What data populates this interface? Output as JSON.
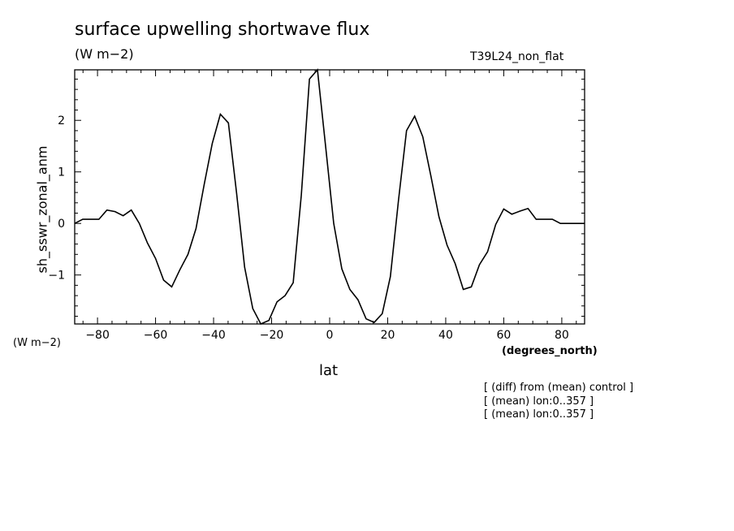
{
  "chart_data": {
    "type": "line",
    "title": "surface upwelling shortwave flux",
    "units": "(W m−2)",
    "run_label": "T39L24_non_flat",
    "ylabel": "sh_sswr_zonal_anm",
    "ylabel_units": "(W m−2)",
    "xlabel": "lat",
    "xlabel_units": "(degrees_north)",
    "notes": [
      "[ (diff) from (mean) control ]",
      "[ (mean) lon:0..357 ]",
      "[ (mean) lon:0..357 ]"
    ],
    "xlim": [
      -87.86,
      87.86
    ],
    "ylim": [
      -1.95,
      2.98
    ],
    "xticks": [
      -80,
      -60,
      -40,
      -20,
      0,
      20,
      40,
      60,
      80
    ],
    "xtick_labels": [
      "−80",
      "−60",
      "−40",
      "−20",
      "0",
      "20",
      "40",
      "60",
      "80"
    ],
    "yticks": [
      -1,
      0,
      1,
      2
    ],
    "ytick_labels": [
      "−1",
      "0",
      "1",
      "2"
    ],
    "grid": false,
    "series": [
      {
        "x": [
          -87.86,
          -85.1,
          -82.31,
          -79.53,
          -76.74,
          -73.95,
          -71.16,
          -68.37,
          -65.58,
          -62.79,
          -60.0,
          -57.21,
          -54.42,
          -51.63,
          -48.84,
          -46.05,
          -43.26,
          -40.47,
          -37.67,
          -34.88,
          -32.09,
          -29.3,
          -26.51,
          -23.72,
          -20.93,
          -18.14,
          -15.35,
          -12.56,
          -9.77,
          -6.98,
          -4.19,
          -1.4,
          1.4,
          4.19,
          6.98,
          9.77,
          12.56,
          15.35,
          18.14,
          20.93,
          23.72,
          26.51,
          29.3,
          32.09,
          34.88,
          37.67,
          40.47,
          43.26,
          46.05,
          48.84,
          51.63,
          54.42,
          57.21,
          60.0,
          62.79,
          65.58,
          68.37,
          71.16,
          73.95,
          76.74,
          79.53,
          82.31,
          85.1,
          87.86
        ],
        "y": [
          0.0,
          0.08,
          0.08,
          0.08,
          0.26,
          0.23,
          0.15,
          0.26,
          0.0,
          -0.38,
          -0.68,
          -1.1,
          -1.23,
          -0.9,
          -0.6,
          -0.1,
          0.75,
          1.55,
          2.12,
          1.95,
          0.6,
          -0.85,
          -1.65,
          -1.95,
          -1.88,
          -1.52,
          -1.4,
          -1.15,
          0.55,
          2.8,
          2.98,
          1.5,
          0.0,
          -0.88,
          -1.28,
          -1.48,
          -1.85,
          -1.92,
          -1.75,
          -1.03,
          0.45,
          1.8,
          2.08,
          1.68,
          0.92,
          0.13,
          -0.42,
          -0.78,
          -1.28,
          -1.23,
          -0.8,
          -0.55,
          -0.02,
          0.28,
          0.18,
          0.24,
          0.29,
          0.08,
          0.08,
          0.08,
          0.0,
          0.0,
          0.0,
          0.0
        ]
      }
    ]
  }
}
